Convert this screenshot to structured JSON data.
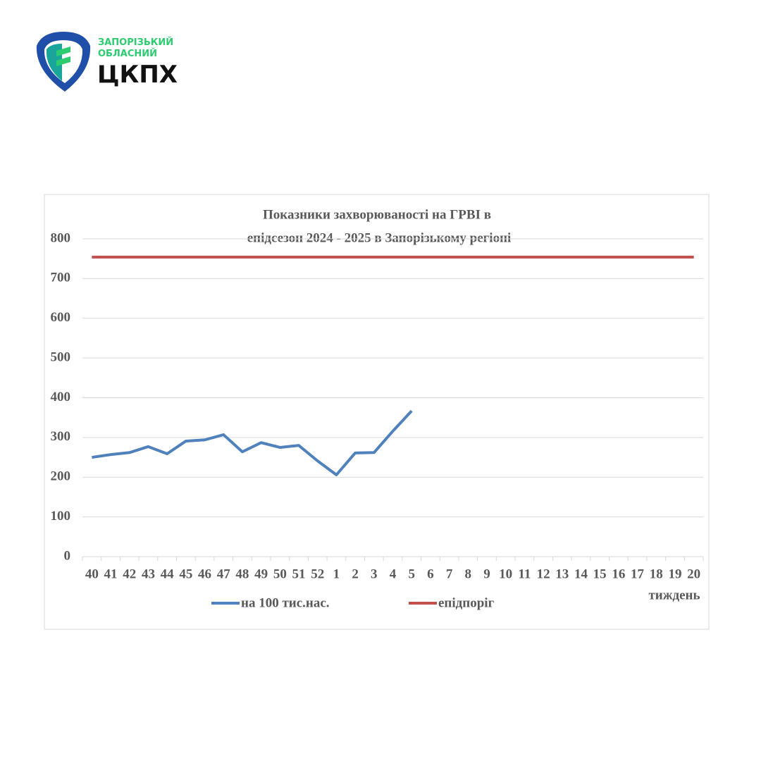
{
  "logo": {
    "line1": "ЗАПОРІЗЬКИЙ",
    "line2": "ОБЛАСНИЙ",
    "name": "ЦКПХ"
  },
  "chart_data": {
    "type": "line",
    "title": [
      "Показники захворюваності на ГРВІ в",
      "епідсезон 2024 - 2025 в Запорізькому регіоні"
    ],
    "x_label": "тиждень",
    "categories": [
      "40",
      "41",
      "42",
      "43",
      "44",
      "45",
      "46",
      "47",
      "48",
      "49",
      "50",
      "51",
      "52",
      "1",
      "2",
      "3",
      "4",
      "5",
      "6",
      "7",
      "8",
      "9",
      "10",
      "11",
      "12",
      "13",
      "14",
      "15",
      "16",
      "17",
      "18",
      "19",
      "20"
    ],
    "series": [
      {
        "name": "на 100 тис.нас.",
        "color": "#4f81bd",
        "values": [
          250,
          257,
          262,
          277,
          259,
          291,
          294,
          307,
          264,
          287,
          275,
          280,
          241,
          206,
          261,
          262,
          316,
          367,
          null,
          null,
          null,
          null,
          null,
          null,
          null,
          null,
          null,
          null,
          null,
          null,
          null,
          null,
          null
        ]
      },
      {
        "name": "епідпоріг",
        "color": "#c0504d",
        "values": [
          754,
          754,
          754,
          754,
          754,
          754,
          754,
          754,
          754,
          754,
          754,
          754,
          754,
          754,
          754,
          754,
          754,
          754,
          754,
          754,
          754,
          754,
          754,
          754,
          754,
          754,
          754,
          754,
          754,
          754,
          754,
          754,
          754
        ]
      }
    ],
    "ylim": [
      0,
      800
    ],
    "yticks": [
      0,
      100,
      200,
      300,
      400,
      500,
      600,
      700,
      800
    ],
    "grid": true,
    "legend": "bottom"
  }
}
